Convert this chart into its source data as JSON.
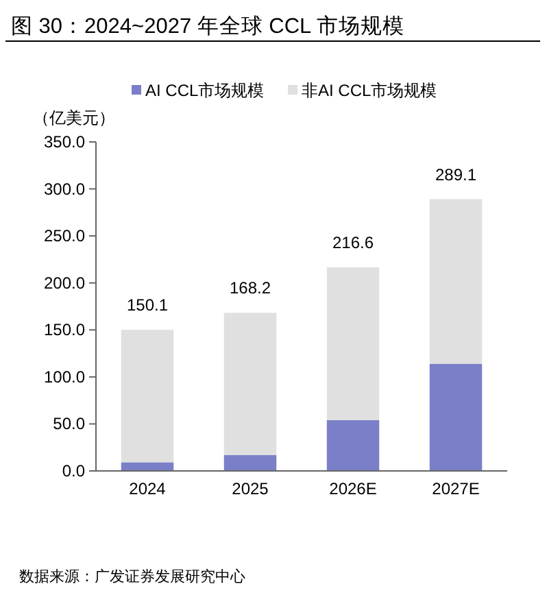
{
  "chart_data": {
    "type": "bar",
    "title": "图 30：2024~2027 年全球 CCL 市场规模",
    "ylabel": "（亿美元）",
    "categories": [
      "2024",
      "2025",
      "2026E",
      "2027E"
    ],
    "stacked": true,
    "series": [
      {
        "name": "AI CCL市场规模",
        "color": "#7b7fc8",
        "values": [
          9.2,
          17.0,
          54.0,
          114.0
        ]
      },
      {
        "name": "非AI CCL市场规模",
        "color": "#e0e0e0",
        "values": [
          140.9,
          151.2,
          162.6,
          175.1
        ]
      }
    ],
    "totals": [
      "150.1",
      "168.2",
      "216.6",
      "289.1"
    ],
    "ylim": [
      0,
      350
    ],
    "yticks": [
      {
        "value": 0,
        "label": "0.0"
      },
      {
        "value": 50,
        "label": "50.0"
      },
      {
        "value": 100,
        "label": "100.0"
      },
      {
        "value": 150,
        "label": "150.0"
      },
      {
        "value": 200,
        "label": "200.0"
      },
      {
        "value": 250,
        "label": "250.0"
      },
      {
        "value": 300,
        "label": "300.0"
      },
      {
        "value": 350,
        "label": "350.0"
      }
    ],
    "legend": "top",
    "grid": false,
    "annotations": [
      "数据来源：广发证券发展研究中心"
    ]
  }
}
